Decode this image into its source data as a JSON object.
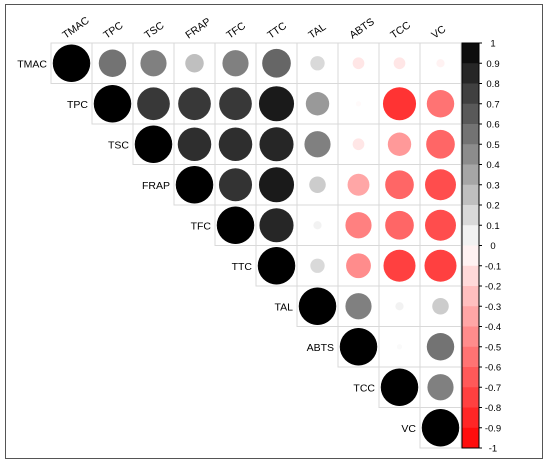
{
  "chart_data": {
    "type": "heatmap",
    "title": "",
    "variables": [
      "TMAC",
      "TPC",
      "TSC",
      "FRAP",
      "TFC",
      "TTC",
      "TAL",
      "ABTS",
      "TCC",
      "VC"
    ],
    "shape": "upper-triangle",
    "matrix": [
      [
        1.0,
        0.55,
        0.5,
        0.25,
        0.5,
        0.6,
        0.15,
        -0.1,
        -0.1,
        -0.05
      ],
      [
        0.55,
        1.0,
        0.78,
        0.78,
        0.78,
        0.9,
        0.4,
        -0.02,
        -0.8,
        -0.55
      ],
      [
        0.5,
        0.78,
        1.0,
        0.82,
        0.82,
        0.85,
        0.5,
        -0.1,
        -0.4,
        -0.6
      ],
      [
        0.25,
        0.78,
        0.82,
        1.0,
        0.8,
        0.9,
        0.2,
        -0.35,
        -0.6,
        -0.7
      ],
      [
        0.5,
        0.78,
        0.82,
        0.8,
        1.0,
        0.85,
        0.05,
        -0.5,
        -0.6,
        -0.7
      ],
      [
        0.6,
        0.9,
        0.85,
        0.9,
        0.85,
        1.0,
        0.15,
        -0.45,
        -0.75,
        -0.75
      ],
      [
        0.15,
        0.4,
        0.5,
        0.2,
        0.05,
        0.15,
        1.0,
        0.5,
        0.05,
        0.2
      ],
      [
        -0.1,
        -0.02,
        -0.1,
        -0.35,
        -0.5,
        -0.45,
        0.5,
        1.0,
        0.02,
        0.55
      ],
      [
        -0.1,
        -0.8,
        -0.4,
        -0.6,
        -0.6,
        -0.75,
        0.05,
        0.02,
        1.0,
        0.5
      ],
      [
        -0.05,
        -0.55,
        -0.6,
        -0.7,
        -0.7,
        -0.75,
        0.2,
        0.55,
        0.5,
        1.0
      ]
    ],
    "colorbar": {
      "min": -1,
      "max": 1,
      "ticks": [
        "1",
        "0.9",
        "0.8",
        "0.7",
        "0.6",
        "0.5",
        "0.4",
        "0.3",
        "0.2",
        "0.1",
        "0",
        "-0.1",
        "-0.2",
        "-0.3",
        "-0.4",
        "-0.5",
        "-0.6",
        "-0.7",
        "-0.8",
        "-0.9",
        "-1"
      ],
      "positive_color": "#000000",
      "neutral_color": "#ffffff",
      "negative_color": "#ff0000"
    },
    "grid": true,
    "legend_position": "right"
  }
}
